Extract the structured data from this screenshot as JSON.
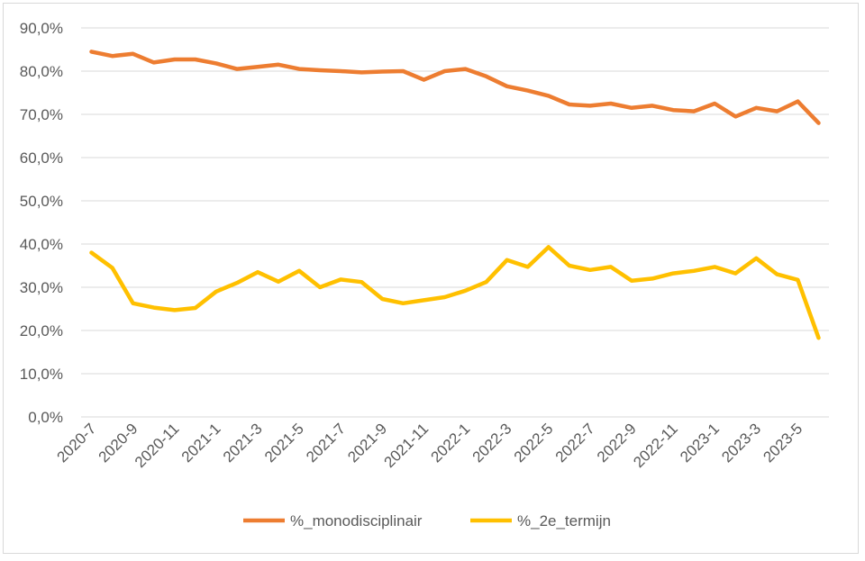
{
  "chart_data": {
    "type": "line",
    "title": "",
    "xlabel": "",
    "ylabel": "",
    "ylim": [
      0,
      90
    ],
    "y_ticks": [
      "0,0%",
      "10,0%",
      "20,0%",
      "30,0%",
      "40,0%",
      "50,0%",
      "60,0%",
      "70,0%",
      "80,0%",
      "90,0%"
    ],
    "grid": "horizontal",
    "legend": "bottom",
    "x": [
      "2020-7",
      "2020-8",
      "2020-9",
      "2020-10",
      "2020-11",
      "2020-12",
      "2021-1",
      "2021-2",
      "2021-3",
      "2021-4",
      "2021-5",
      "2021-6",
      "2021-7",
      "2021-8",
      "2021-9",
      "2021-10",
      "2021-11",
      "2021-12",
      "2022-1",
      "2022-2",
      "2022-3",
      "2022-4",
      "2022-5",
      "2022-6",
      "2022-7",
      "2022-8",
      "2022-9",
      "2022-10",
      "2022-11",
      "2022-12",
      "2023-1",
      "2023-2",
      "2023-3",
      "2023-4",
      "2023-5",
      "2023-6"
    ],
    "x_tick_labels": [
      "2020-7",
      "2020-9",
      "2020-11",
      "2021-1",
      "2021-3",
      "2021-5",
      "2021-7",
      "2021-9",
      "2021-11",
      "2022-1",
      "2022-3",
      "2022-5",
      "2022-7",
      "2022-9",
      "2022-11",
      "2023-1",
      "2023-3",
      "2023-5"
    ],
    "series": [
      {
        "name": "%_monodisciplinair",
        "color": "#ED7D31",
        "values": [
          84.5,
          83.5,
          84.0,
          82.0,
          82.7,
          82.7,
          81.8,
          80.5,
          81.0,
          81.5,
          80.5,
          80.2,
          80.0,
          79.7,
          79.9,
          80.0,
          78.0,
          80.0,
          80.5,
          78.8,
          76.5,
          75.5,
          74.3,
          72.3,
          72.0,
          72.5,
          71.5,
          72.0,
          71.0,
          70.7,
          72.5,
          69.5,
          71.5,
          70.7,
          73.0,
          68.0
        ]
      },
      {
        "name": "%_2e_termijn",
        "color": "#FFC000",
        "values": [
          38.0,
          34.5,
          26.3,
          25.3,
          24.7,
          25.2,
          29.0,
          31.0,
          33.5,
          31.3,
          33.8,
          30.0,
          31.8,
          31.2,
          27.3,
          26.3,
          27.0,
          27.7,
          29.2,
          31.2,
          36.3,
          34.7,
          39.3,
          35.0,
          34.0,
          34.7,
          31.5,
          32.0,
          33.2,
          33.8,
          34.7,
          33.2,
          36.7,
          33.0,
          31.7,
          18.3
        ]
      }
    ]
  }
}
